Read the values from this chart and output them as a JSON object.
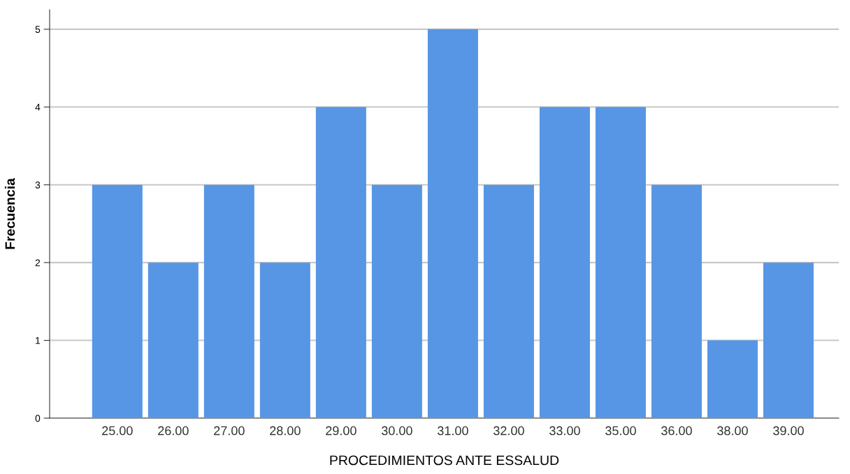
{
  "chart_data": {
    "type": "bar",
    "xlabel": "PROCEDIMIENTOS ANTE ESSALUD",
    "ylabel": "Frecuencia",
    "categories": [
      "25.00",
      "26.00",
      "27.00",
      "28.00",
      "29.00",
      "30.00",
      "31.00",
      "32.00",
      "33.00",
      "35.00",
      "36.00",
      "38.00",
      "39.00"
    ],
    "values": [
      3,
      2,
      3,
      2,
      4,
      3,
      5,
      3,
      4,
      4,
      3,
      1,
      2
    ],
    "color": "#5796e4",
    "ylim": [
      0,
      5.25
    ],
    "yticks": [
      0,
      1,
      2,
      3,
      4,
      5
    ],
    "grid": "y"
  }
}
